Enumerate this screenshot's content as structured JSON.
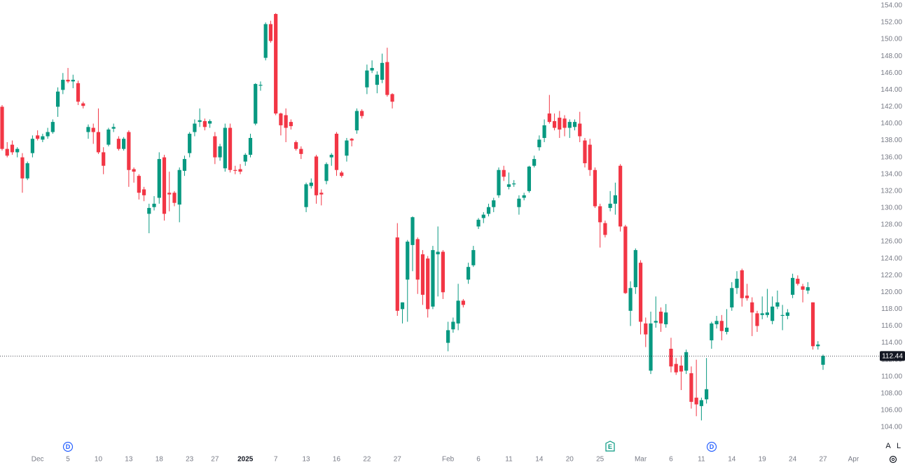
{
  "chart_data": {
    "type": "candlestick",
    "up_color": "#089981",
    "down_color": "#f23645",
    "ylim": [
      101.09,
      154.66
    ],
    "yticks": [
      {
        "value": 104,
        "label": "104.00"
      },
      {
        "value": 106,
        "label": "106.00"
      },
      {
        "value": 108,
        "label": "108.00"
      },
      {
        "value": 110,
        "label": "110.00"
      },
      {
        "value": 112,
        "label": "112.00"
      },
      {
        "value": 114,
        "label": "114.00"
      },
      {
        "value": 116,
        "label": "116.00"
      },
      {
        "value": 118,
        "label": "118.00"
      },
      {
        "value": 120,
        "label": "120.00"
      },
      {
        "value": 122,
        "label": "122.00"
      },
      {
        "value": 124,
        "label": "124.00"
      },
      {
        "value": 126,
        "label": "126.00"
      },
      {
        "value": 128,
        "label": "128.00"
      },
      {
        "value": 130,
        "label": "130.00"
      },
      {
        "value": 132,
        "label": "132.00"
      },
      {
        "value": 134,
        "label": "134.00"
      },
      {
        "value": 136,
        "label": "136.00"
      },
      {
        "value": 138,
        "label": "138.00"
      },
      {
        "value": 140,
        "label": "140.00"
      },
      {
        "value": 142,
        "label": "142.00"
      },
      {
        "value": 144,
        "label": "144.00"
      },
      {
        "value": 146,
        "label": "146.00"
      },
      {
        "value": 148,
        "label": "148.00"
      },
      {
        "value": 150,
        "label": "150.00"
      },
      {
        "value": 152,
        "label": "152.00"
      },
      {
        "value": 154,
        "label": "154.00"
      }
    ],
    "categories": [
      null,
      null,
      null,
      null,
      null,
      null,
      null,
      "Dec",
      null,
      null,
      null,
      null,
      null,
      "5",
      null,
      null,
      null,
      null,
      null,
      "10",
      null,
      null,
      null,
      null,
      null,
      "13",
      null,
      null,
      null,
      null,
      null,
      "18",
      null,
      null,
      null,
      null,
      null,
      "23",
      null,
      null,
      null,
      null,
      "27",
      null,
      null,
      null,
      null,
      null,
      "2025",
      null,
      null,
      null,
      null,
      null,
      "7",
      null,
      null,
      null,
      null,
      null,
      "13",
      null,
      null,
      null,
      null,
      null,
      "16",
      null,
      null,
      null,
      null,
      null,
      "22",
      null,
      null,
      null,
      null,
      null,
      "27",
      null,
      null,
      null,
      null,
      null,
      null,
      null,
      null,
      null,
      "Feb",
      null,
      null,
      null,
      null,
      null,
      "6",
      null,
      null,
      null,
      null,
      null,
      "11",
      null,
      null,
      null,
      null,
      null,
      "14",
      null,
      null,
      null,
      null,
      null,
      "20",
      null,
      null,
      null,
      null,
      null,
      "25",
      null,
      null,
      null,
      null,
      null,
      null,
      null,
      "Mar",
      null,
      null,
      null,
      null,
      null,
      "6",
      null,
      null,
      null,
      null,
      null,
      "11",
      null,
      null,
      null,
      null,
      null,
      "14",
      null,
      null,
      null,
      null,
      null,
      "19",
      null,
      null,
      null,
      null,
      null,
      "24",
      null,
      null,
      null,
      null,
      null,
      "27",
      null,
      null,
      null,
      null,
      null,
      "Apr"
    ],
    "ohlc": [
      [
        142,
        142.2,
        136.8,
        137
      ],
      [
        137,
        137.8,
        136,
        136.2
      ],
      [
        137.5,
        138,
        136.3,
        136.6
      ],
      [
        136.6,
        137.2,
        136,
        137
      ],
      [
        136,
        136.5,
        131.8,
        133.5
      ],
      [
        133.5,
        135.5,
        133.3,
        135.3
      ],
      [
        136.5,
        138.6,
        136,
        138.2
      ],
      [
        138.6,
        139.2,
        138,
        138.2
      ],
      [
        138.1,
        138.8,
        137.8,
        138.5
      ],
      [
        138.5,
        139.5,
        138.2,
        139
      ],
      [
        139,
        140.5,
        138.8,
        140.2
      ],
      [
        142,
        144.3,
        140.8,
        143.8
      ],
      [
        144,
        146,
        143.5,
        145.2
      ],
      [
        145.2,
        146.6,
        144.8,
        145
      ],
      [
        145,
        145.8,
        144.2,
        145.2
      ],
      [
        144.8,
        145.1,
        142.2,
        142.6
      ],
      [
        142.4,
        142.6,
        141.8,
        142.1
      ],
      [
        139,
        139.9,
        138.2,
        139.6
      ],
      [
        139.5,
        140,
        137.6,
        139
      ],
      [
        139,
        141.8,
        136.4,
        136.6
      ],
      [
        136.6,
        137.2,
        134,
        135
      ],
      [
        137.5,
        139.5,
        137.3,
        139.3
      ],
      [
        139.4,
        140,
        139,
        139.6
      ],
      [
        138.2,
        138.5,
        136.8,
        137
      ],
      [
        137,
        138.4,
        136.8,
        138.2
      ],
      [
        139,
        139.2,
        132.5,
        134.5
      ],
      [
        134.6,
        134.8,
        133,
        134.3
      ],
      [
        133.8,
        134,
        131,
        131.8
      ],
      [
        132.2,
        132.5,
        130.8,
        131.5
      ],
      [
        129.3,
        130.5,
        127,
        130
      ],
      [
        130.1,
        131.4,
        129.7,
        130.5
      ],
      [
        131.2,
        136.6,
        130.5,
        135.8
      ],
      [
        136,
        136.3,
        128.5,
        129.3
      ],
      [
        131.8,
        134.3,
        129.6,
        131.6
      ],
      [
        131.8,
        132,
        130.2,
        130.6
      ],
      [
        130.4,
        134.8,
        128.3,
        134.5
      ],
      [
        134.4,
        136.2,
        133.8,
        135.8
      ],
      [
        136.5,
        139,
        136,
        138.8
      ],
      [
        139,
        140.5,
        138.5,
        140
      ],
      [
        140.2,
        141.8,
        139.6,
        140.4
      ],
      [
        140.3,
        140.6,
        139.2,
        139.6
      ],
      [
        140,
        140.5,
        139.5,
        140.3
      ],
      [
        138.5,
        139,
        135.2,
        136
      ],
      [
        136,
        137.6,
        135.6,
        137.3
      ],
      [
        134.7,
        140,
        134.3,
        139.5
      ],
      [
        139.5,
        140,
        134.2,
        134.5
      ],
      [
        134.5,
        135,
        134,
        134.4
      ],
      [
        134.6,
        135.2,
        134,
        134.3
      ],
      [
        135.5,
        136.5,
        135,
        136.3
      ],
      [
        136.3,
        138.8,
        136,
        138.3
      ],
      [
        140,
        144.8,
        139.8,
        144.7
      ],
      [
        144.5,
        145,
        143.9,
        144.6
      ],
      [
        147.8,
        152,
        147.5,
        151.8
      ],
      [
        151.8,
        152.2,
        149.6,
        149.8
      ],
      [
        153,
        153.1,
        141,
        141.2
      ],
      [
        141.2,
        141.3,
        138.6,
        139.8
      ],
      [
        141,
        141.8,
        137.8,
        139.5
      ],
      [
        140.2,
        140.5,
        139.3,
        139.7
      ],
      [
        137.8,
        138,
        136.8,
        137
      ],
      [
        137,
        137.3,
        135.8,
        136.4
      ],
      [
        130.1,
        133,
        129.5,
        132.8
      ],
      [
        132.6,
        133.5,
        132.3,
        133
      ],
      [
        136.1,
        136.3,
        130.5,
        131.5
      ],
      [
        131.8,
        132.2,
        130.3,
        131.6
      ],
      [
        133.2,
        135.4,
        132.8,
        135.2
      ],
      [
        136,
        136.5,
        135,
        136.3
      ],
      [
        138.8,
        139,
        133.8,
        134.5
      ],
      [
        134.2,
        134.4,
        133.6,
        133.8
      ],
      [
        136.2,
        138.3,
        135.5,
        138
      ],
      [
        138.2,
        138.3,
        137.3,
        138
      ],
      [
        139.2,
        141.8,
        138.8,
        141.5
      ],
      [
        141.5,
        141.7,
        140.6,
        140.9
      ],
      [
        144.3,
        147,
        143.5,
        146.3
      ],
      [
        146.3,
        147.5,
        146,
        146.6
      ],
      [
        144.6,
        146.2,
        143.6,
        145.8
      ],
      [
        145.2,
        148.3,
        144.8,
        147.2
      ],
      [
        147.3,
        149,
        143.2,
        143.4
      ],
      [
        143.5,
        143.6,
        141.8,
        142.6
      ],
      [
        126.5,
        128.2,
        117.2,
        117.8
      ],
      [
        118,
        118.8,
        116.3,
        118.8
      ],
      [
        121.5,
        126.2,
        116.5,
        126
      ],
      [
        125.6,
        129,
        122.5,
        128.9
      ],
      [
        126.3,
        126.5,
        119.8,
        121.5
      ],
      [
        124.5,
        125,
        118.5,
        119.7
      ],
      [
        124,
        124.3,
        117,
        118
      ],
      [
        118.3,
        125.5,
        118,
        125
      ],
      [
        124.5,
        127.8,
        119.5,
        124.8
      ],
      [
        124.8,
        125,
        119.2,
        120
      ],
      [
        114,
        116.5,
        113,
        115.5
      ],
      [
        115.6,
        117,
        115.2,
        116.5
      ],
      [
        116.3,
        121,
        115.5,
        119
      ],
      [
        119,
        119.2,
        118.2,
        118.5
      ],
      [
        121.5,
        123.5,
        121,
        123
      ],
      [
        123.2,
        125.5,
        123,
        125
      ],
      [
        127.8,
        128.8,
        127.5,
        128.6
      ],
      [
        128.8,
        129.5,
        128.2,
        129.2
      ],
      [
        129.3,
        130.5,
        129,
        130.1
      ],
      [
        130.1,
        131.2,
        129.5,
        130.9
      ],
      [
        131.5,
        134.8,
        131.2,
        134.5
      ],
      [
        134.5,
        135,
        133.2,
        133.7
      ],
      [
        132.5,
        134.2,
        132.2,
        132.8
      ],
      [
        132.8,
        133.3,
        132.5,
        132.9
      ],
      [
        130.1,
        131.5,
        129.2,
        131.1
      ],
      [
        131.2,
        131.8,
        130.9,
        131.5
      ],
      [
        132,
        135,
        131.8,
        134.9
      ],
      [
        135,
        136.2,
        134.8,
        135.8
      ],
      [
        137.2,
        138.6,
        136.8,
        138.1
      ],
      [
        138.3,
        140.5,
        137.8,
        139.8
      ],
      [
        141.2,
        143.4,
        140,
        140.2
      ],
      [
        140.3,
        141.2,
        139.2,
        139.5
      ],
      [
        140.7,
        141.5,
        138.3,
        139.3
      ],
      [
        140.6,
        141,
        138.5,
        139.5
      ],
      [
        139.5,
        140.5,
        138.3,
        140.2
      ],
      [
        139.6,
        140.5,
        139.2,
        140.2
      ],
      [
        140,
        141.4,
        137.8,
        138.5
      ],
      [
        138,
        138.3,
        134.8,
        135.3
      ],
      [
        137.5,
        138.2,
        133.8,
        134.5
      ],
      [
        134.5,
        134.8,
        130,
        130.2
      ],
      [
        130.2,
        130.5,
        125.3,
        128.3
      ],
      [
        128.2,
        128.5,
        126.5,
        126.8
      ],
      [
        130,
        132,
        129.6,
        130.5
      ],
      [
        130.5,
        133,
        129.2,
        131.5
      ],
      [
        135,
        135.2,
        127.2,
        127.8
      ],
      [
        127.8,
        128,
        119.8,
        119.9
      ],
      [
        117.8,
        121.3,
        116,
        120.5
      ],
      [
        120.6,
        125.2,
        119.8,
        125
      ],
      [
        123.5,
        123.8,
        115,
        116.5
      ],
      [
        116.3,
        117,
        113.5,
        115
      ],
      [
        110.7,
        117.7,
        110.3,
        116.3
      ],
      [
        116.4,
        119.5,
        115.8,
        116.6
      ],
      [
        117.7,
        118.2,
        115.3,
        116.3
      ],
      [
        116.2,
        118.6,
        115.8,
        117.6
      ],
      [
        113.3,
        114.6,
        110.5,
        111.2
      ],
      [
        111.5,
        112.2,
        110.2,
        110.5
      ],
      [
        111.3,
        112.5,
        108.4,
        110.6
      ],
      [
        110.7,
        113.2,
        110.3,
        112.9
      ],
      [
        110.4,
        111.2,
        106.2,
        107
      ],
      [
        107.5,
        112,
        105.3,
        106.7
      ],
      [
        106.5,
        107.5,
        104.8,
        107.2
      ],
      [
        107.3,
        112.2,
        106.8,
        108.5
      ],
      [
        114.3,
        116.5,
        113.3,
        116.3
      ],
      [
        116.2,
        117.2,
        115.7,
        116.6
      ],
      [
        116.6,
        117.3,
        114.3,
        115.4
      ],
      [
        115.3,
        118,
        115,
        115.8
      ],
      [
        118.2,
        121.2,
        117.8,
        120.5
      ],
      [
        120.5,
        122.5,
        119.8,
        121.6
      ],
      [
        122.6,
        122.8,
        118.3,
        119.3
      ],
      [
        119.6,
        121,
        119,
        119.3
      ],
      [
        118.8,
        119.4,
        114.8,
        117.6
      ],
      [
        117.5,
        117.8,
        115.3,
        116
      ],
      [
        117.3,
        119.5,
        116.8,
        117.5
      ],
      [
        117.3,
        120.4,
        117,
        117.6
      ],
      [
        116.6,
        119.5,
        116.2,
        118.3
      ],
      [
        118.3,
        120.2,
        118,
        118.8
      ],
      [
        117.2,
        118.5,
        115.5,
        117.3
      ],
      [
        117.2,
        118,
        116.8,
        117.6
      ],
      [
        119.7,
        122.2,
        119.3,
        121.7
      ],
      [
        121.6,
        122,
        120.8,
        121
      ],
      [
        120.7,
        121,
        118.8,
        120.3
      ],
      [
        120.2,
        121.2,
        119.8,
        120.6
      ],
      [
        118.8,
        118.8,
        113.2,
        113.6
      ],
      [
        113.6,
        114.2,
        113.2,
        113.8
      ],
      [
        111.4,
        112.6,
        110.8,
        112.44
      ],
      null,
      null,
      null,
      null,
      null,
      null
    ],
    "events": [
      "D",
      "E",
      "D"
    ],
    "buttons": [
      "A",
      "L"
    ]
  }
}
